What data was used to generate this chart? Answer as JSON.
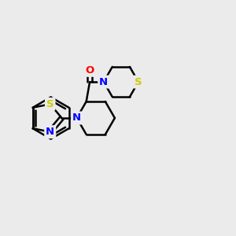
{
  "background_color": "#ebebeb",
  "bond_color": "#000000",
  "bond_width": 1.8,
  "atom_colors": {
    "S": "#cccc00",
    "N": "#0000ff",
    "O": "#ff0000",
    "C": "#000000"
  },
  "figsize": [
    3.0,
    3.0
  ],
  "dpi": 100
}
